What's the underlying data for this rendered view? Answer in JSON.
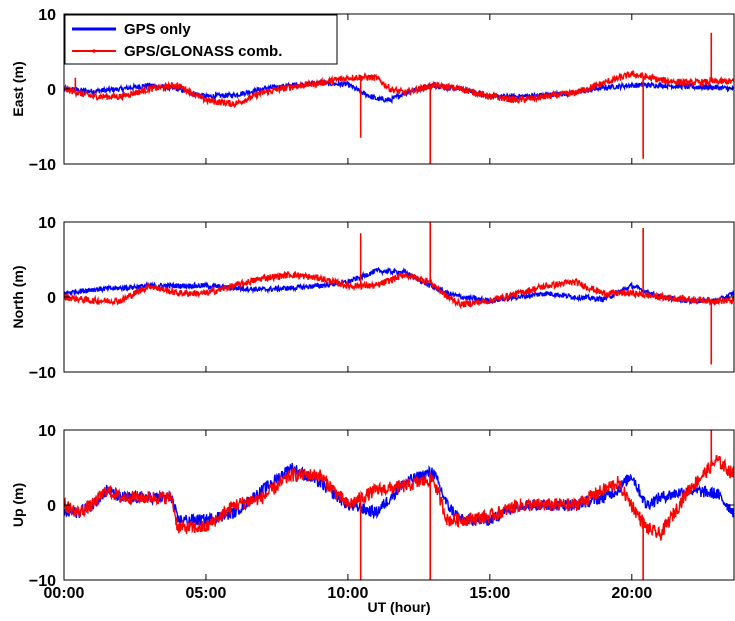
{
  "chart_data": {
    "type": "line",
    "xlabel": "UT (hour)",
    "x_range_hours": [
      0,
      23.6
    ],
    "x_ticks": [
      {
        "hour": 0,
        "label": "00:00"
      },
      {
        "hour": 5,
        "label": "05:00"
      },
      {
        "hour": 10,
        "label": "10:00"
      },
      {
        "hour": 15,
        "label": "15:00"
      },
      {
        "hour": 20,
        "label": "20:00"
      }
    ],
    "y_ticks": [
      {
        "value": 10,
        "label": "10"
      },
      {
        "value": 0,
        "label": "0"
      },
      {
        "value": -10,
        "label": "−10"
      }
    ],
    "legend": {
      "location": "top-left",
      "entries": [
        {
          "name": "GPS only",
          "color": "#0000ff"
        },
        {
          "name": "GPS/GLONASS comb.",
          "color": "#ff0000"
        }
      ]
    },
    "panels": [
      {
        "ylabel": "East (m)",
        "ylim": [
          -10,
          10
        ],
        "series": [
          {
            "name": "GPS only",
            "color": "#0000ff",
            "noise": 0.35,
            "x": [
              0,
              1,
              2,
              3,
              4,
              5,
              6,
              7,
              8,
              9,
              10,
              10.5,
              11,
              11.5,
              12,
              13,
              14,
              15,
              16,
              17,
              18,
              19,
              20,
              21,
              22,
              23,
              23.6
            ],
            "y": [
              0,
              -0.3,
              0,
              0.5,
              0,
              -1,
              -0.8,
              0,
              0.5,
              0.8,
              0.6,
              -0.5,
              -1.3,
              -1.5,
              -0.5,
              0.5,
              0,
              -1,
              -1,
              -0.8,
              -0.5,
              0.2,
              0.5,
              0.5,
              0.3,
              0.2,
              0
            ]
          },
          {
            "name": "GPS/GLONASS comb.",
            "color": "#ff0000",
            "noise": 0.45,
            "x": [
              0,
              1,
              2,
              3,
              4,
              5,
              6,
              7,
              8,
              9,
              10,
              10.5,
              11,
              11.5,
              12,
              13,
              14,
              15,
              16,
              17,
              18,
              19,
              20,
              21,
              22,
              23,
              23.6
            ],
            "y": [
              0,
              -1,
              -1,
              0,
              0.5,
              -1.5,
              -2,
              -0.5,
              0.3,
              0.8,
              1.5,
              1.6,
              1.5,
              0,
              -0.5,
              0.5,
              0,
              -1,
              -1.5,
              -1,
              -0.5,
              0.8,
              2,
              1.2,
              0.8,
              1,
              1
            ],
            "spikes": [
              {
                "x": 0.4,
                "y": 1.5
              },
              {
                "x": 10.45,
                "y": -6.5
              },
              {
                "x": 12.9,
                "y": -10
              },
              {
                "x": 20.4,
                "y": -9.3
              },
              {
                "x": 22.8,
                "y": 7.5
              }
            ]
          }
        ]
      },
      {
        "ylabel": "North (m)",
        "ylim": [
          -10,
          10
        ],
        "series": [
          {
            "name": "GPS only",
            "color": "#0000ff",
            "noise": 0.35,
            "x": [
              0,
              1,
              2,
              3,
              4,
              5,
              6,
              7,
              8,
              9,
              10,
              11,
              12,
              12.9,
              13.5,
              14,
              15,
              16,
              17,
              18,
              19,
              20,
              21,
              22,
              23,
              23.6
            ],
            "y": [
              0.5,
              1,
              1.2,
              1.5,
              1.5,
              1.5,
              1.2,
              1,
              1.2,
              1.5,
              2,
              3.5,
              3.3,
              1.5,
              0.5,
              0,
              -0.5,
              0,
              0.5,
              0,
              -0.3,
              1.5,
              0,
              -0.5,
              -0.5,
              0.5
            ]
          },
          {
            "name": "GPS/GLONASS comb.",
            "color": "#ff0000",
            "noise": 0.45,
            "x": [
              0,
              1,
              2,
              3,
              4,
              5,
              6,
              7,
              8,
              9,
              10,
              11,
              12,
              12.9,
              13.5,
              14,
              15,
              16,
              17,
              18,
              19,
              20,
              21,
              22,
              23,
              23.6
            ],
            "y": [
              0,
              -0.5,
              -0.5,
              1.5,
              0.5,
              0.5,
              1.5,
              2.5,
              3,
              2.5,
              1.5,
              1.5,
              3,
              2,
              0,
              -1,
              -0.5,
              0.5,
              1.5,
              2,
              0.5,
              0.5,
              0,
              -0.3,
              -0.5,
              -0.5
            ],
            "spikes": [
              {
                "x": 10.45,
                "y": 8.5
              },
              {
                "x": 12.9,
                "y": 10
              },
              {
                "x": 20.4,
                "y": 9.2
              },
              {
                "x": 22.8,
                "y": -9
              }
            ]
          }
        ]
      },
      {
        "ylabel": "Up (m)",
        "ylim": [
          -10,
          10
        ],
        "series": [
          {
            "name": "GPS only",
            "color": "#0000ff",
            "noise": 0.8,
            "x": [
              0,
              0.5,
              1,
              1.5,
              2,
              3,
              3.8,
              4,
              5,
              6,
              7,
              8,
              9,
              10,
              11,
              12,
              13,
              13.5,
              14,
              15,
              16,
              17,
              18,
              19,
              19.5,
              20,
              20.5,
              21,
              22,
              23,
              23.6
            ],
            "y": [
              -1,
              -1,
              0,
              2,
              1,
              1,
              1,
              -2,
              -2,
              -1,
              2,
              5,
              3,
              0,
              -1,
              3,
              4.5,
              0,
              -2,
              -2,
              0,
              0,
              0,
              1,
              2,
              4,
              0,
              1,
              2,
              1.5,
              -1
            ]
          },
          {
            "name": "GPS/GLONASS comb.",
            "color": "#ff0000",
            "noise": 0.9,
            "x": [
              0,
              0.5,
              1,
              1.5,
              2,
              3,
              3.8,
              4,
              5,
              6,
              7,
              8,
              9,
              10,
              11,
              12,
              13,
              13.5,
              14,
              15,
              16,
              17,
              18,
              19,
              19.5,
              20,
              20.5,
              21,
              22,
              23,
              23.6
            ],
            "y": [
              0,
              -1,
              0,
              2,
              1,
              1,
              1,
              -3,
              -3,
              0,
              1,
              4,
              4,
              0,
              2,
              2.5,
              3.5,
              -2,
              -2,
              -1.5,
              0,
              0,
              0,
              2,
              3,
              0,
              -3,
              -4,
              2,
              6,
              4
            ],
            "spikes": [
              {
                "x": 10.45,
                "y": -10
              },
              {
                "x": 12.9,
                "y": -10
              },
              {
                "x": 20.4,
                "y": -10
              },
              {
                "x": 22.8,
                "y": 10
              }
            ]
          }
        ]
      }
    ]
  }
}
